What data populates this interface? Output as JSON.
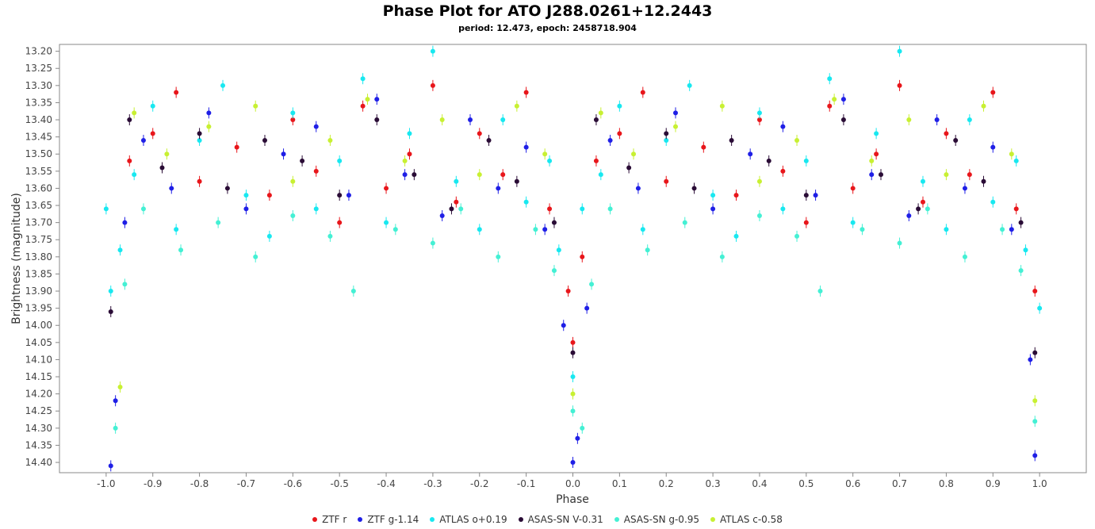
{
  "chart_data": {
    "type": "scatter",
    "title": "Phase Plot for ATO J288.0261+12.2443",
    "subtitle": "period: 12.473, epoch: 2458718.904",
    "xlabel": "Phase",
    "ylabel": "Brightness (magnitude)",
    "xlim": [
      -1.1,
      1.1
    ],
    "ylim": [
      14.43,
      13.18
    ],
    "y_inverted": true,
    "grid": false,
    "legend_position": "bottom",
    "x_ticks": [
      "-1.0",
      "-0.9",
      "-0.8",
      "-0.7",
      "-0.6",
      "-0.5",
      "-0.4",
      "-0.3",
      "-0.2",
      "-0.1",
      "0.0",
      "0.1",
      "0.2",
      "0.3",
      "0.4",
      "0.5",
      "0.6",
      "0.7",
      "0.8",
      "0.9",
      "1.0"
    ],
    "y_ticks": [
      "13.20",
      "13.25",
      "13.30",
      "13.35",
      "13.40",
      "13.45",
      "13.50",
      "13.55",
      "13.60",
      "13.65",
      "13.70",
      "13.75",
      "13.80",
      "13.85",
      "13.90",
      "13.95",
      "14.00",
      "14.05",
      "14.10",
      "14.15",
      "14.20",
      "14.25",
      "14.30",
      "14.35",
      "14.40"
    ],
    "series": [
      {
        "name": "ZTF r",
        "color": "#e8161b",
        "points": [
          [
            -0.95,
            13.52
          ],
          [
            -0.9,
            13.44
          ],
          [
            -0.85,
            13.32
          ],
          [
            -0.8,
            13.58
          ],
          [
            -0.72,
            13.48
          ],
          [
            -0.65,
            13.62
          ],
          [
            -0.6,
            13.4
          ],
          [
            -0.55,
            13.55
          ],
          [
            -0.5,
            13.7
          ],
          [
            -0.45,
            13.36
          ],
          [
            -0.4,
            13.6
          ],
          [
            -0.35,
            13.5
          ],
          [
            -0.3,
            13.3
          ],
          [
            -0.25,
            13.64
          ],
          [
            -0.2,
            13.44
          ],
          [
            -0.15,
            13.56
          ],
          [
            -0.1,
            13.32
          ],
          [
            -0.05,
            13.66
          ],
          [
            -0.01,
            13.9
          ],
          [
            0.0,
            14.05
          ],
          [
            0.02,
            13.8
          ],
          [
            0.05,
            13.52
          ],
          [
            0.1,
            13.44
          ],
          [
            0.15,
            13.32
          ],
          [
            0.2,
            13.58
          ],
          [
            0.28,
            13.48
          ],
          [
            0.35,
            13.62
          ],
          [
            0.4,
            13.4
          ],
          [
            0.45,
            13.55
          ],
          [
            0.5,
            13.7
          ],
          [
            0.55,
            13.36
          ],
          [
            0.6,
            13.6
          ],
          [
            0.65,
            13.5
          ],
          [
            0.7,
            13.3
          ],
          [
            0.75,
            13.64
          ],
          [
            0.8,
            13.44
          ],
          [
            0.85,
            13.56
          ],
          [
            0.9,
            13.32
          ],
          [
            0.95,
            13.66
          ],
          [
            0.99,
            13.9
          ]
        ]
      },
      {
        "name": "ZTF g-1.14",
        "color": "#1f1fe6",
        "points": [
          [
            -0.99,
            14.41
          ],
          [
            -0.98,
            14.22
          ],
          [
            -0.96,
            13.7
          ],
          [
            -0.92,
            13.46
          ],
          [
            -0.86,
            13.6
          ],
          [
            -0.78,
            13.38
          ],
          [
            -0.7,
            13.66
          ],
          [
            -0.62,
            13.5
          ],
          [
            -0.55,
            13.42
          ],
          [
            -0.48,
            13.62
          ],
          [
            -0.42,
            13.34
          ],
          [
            -0.36,
            13.56
          ],
          [
            -0.28,
            13.68
          ],
          [
            -0.22,
            13.4
          ],
          [
            -0.16,
            13.6
          ],
          [
            -0.1,
            13.48
          ],
          [
            -0.06,
            13.72
          ],
          [
            -0.02,
            14.0
          ],
          [
            0.0,
            14.4
          ],
          [
            0.01,
            14.33
          ],
          [
            0.03,
            13.95
          ],
          [
            0.08,
            13.46
          ],
          [
            0.14,
            13.6
          ],
          [
            0.22,
            13.38
          ],
          [
            0.3,
            13.66
          ],
          [
            0.38,
            13.5
          ],
          [
            0.45,
            13.42
          ],
          [
            0.52,
            13.62
          ],
          [
            0.58,
            13.34
          ],
          [
            0.64,
            13.56
          ],
          [
            0.72,
            13.68
          ],
          [
            0.78,
            13.4
          ],
          [
            0.84,
            13.6
          ],
          [
            0.9,
            13.48
          ],
          [
            0.94,
            13.72
          ],
          [
            0.98,
            14.1
          ],
          [
            0.99,
            14.38
          ]
        ]
      },
      {
        "name": "ATLAS o+0.19",
        "color": "#18e8f0",
        "points": [
          [
            -1.0,
            13.66
          ],
          [
            -0.99,
            13.9
          ],
          [
            -0.97,
            13.78
          ],
          [
            -0.94,
            13.56
          ],
          [
            -0.9,
            13.36
          ],
          [
            -0.85,
            13.72
          ],
          [
            -0.8,
            13.46
          ],
          [
            -0.75,
            13.3
          ],
          [
            -0.7,
            13.62
          ],
          [
            -0.65,
            13.74
          ],
          [
            -0.6,
            13.38
          ],
          [
            -0.55,
            13.66
          ],
          [
            -0.5,
            13.52
          ],
          [
            -0.45,
            13.28
          ],
          [
            -0.4,
            13.7
          ],
          [
            -0.35,
            13.44
          ],
          [
            -0.3,
            13.2
          ],
          [
            -0.25,
            13.58
          ],
          [
            -0.2,
            13.72
          ],
          [
            -0.15,
            13.4
          ],
          [
            -0.1,
            13.64
          ],
          [
            -0.05,
            13.52
          ],
          [
            -0.03,
            13.78
          ],
          [
            0.0,
            14.15
          ],
          [
            0.02,
            13.66
          ],
          [
            0.06,
            13.56
          ],
          [
            0.1,
            13.36
          ],
          [
            0.15,
            13.72
          ],
          [
            0.2,
            13.46
          ],
          [
            0.25,
            13.3
          ],
          [
            0.3,
            13.62
          ],
          [
            0.35,
            13.74
          ],
          [
            0.4,
            13.38
          ],
          [
            0.45,
            13.66
          ],
          [
            0.5,
            13.52
          ],
          [
            0.55,
            13.28
          ],
          [
            0.6,
            13.7
          ],
          [
            0.65,
            13.44
          ],
          [
            0.7,
            13.2
          ],
          [
            0.75,
            13.58
          ],
          [
            0.8,
            13.72
          ],
          [
            0.85,
            13.4
          ],
          [
            0.9,
            13.64
          ],
          [
            0.95,
            13.52
          ],
          [
            0.97,
            13.78
          ],
          [
            1.0,
            13.95
          ]
        ]
      },
      {
        "name": "ASAS-SN V-0.31",
        "color": "#2a0c36",
        "points": [
          [
            -0.99,
            13.96
          ],
          [
            -0.95,
            13.4
          ],
          [
            -0.88,
            13.54
          ],
          [
            -0.8,
            13.44
          ],
          [
            -0.74,
            13.6
          ],
          [
            -0.66,
            13.46
          ],
          [
            -0.58,
            13.52
          ],
          [
            -0.5,
            13.62
          ],
          [
            -0.42,
            13.4
          ],
          [
            -0.34,
            13.56
          ],
          [
            -0.26,
            13.66
          ],
          [
            -0.18,
            13.46
          ],
          [
            -0.12,
            13.58
          ],
          [
            -0.04,
            13.7
          ],
          [
            0.0,
            14.08
          ],
          [
            0.05,
            13.4
          ],
          [
            0.12,
            13.54
          ],
          [
            0.2,
            13.44
          ],
          [
            0.26,
            13.6
          ],
          [
            0.34,
            13.46
          ],
          [
            0.42,
            13.52
          ],
          [
            0.5,
            13.62
          ],
          [
            0.58,
            13.4
          ],
          [
            0.66,
            13.56
          ],
          [
            0.74,
            13.66
          ],
          [
            0.82,
            13.46
          ],
          [
            0.88,
            13.58
          ],
          [
            0.96,
            13.7
          ],
          [
            0.99,
            14.08
          ]
        ]
      },
      {
        "name": "ASAS-SN g-0.95",
        "color": "#44f0d4",
        "points": [
          [
            -0.98,
            14.3
          ],
          [
            -0.96,
            13.88
          ],
          [
            -0.92,
            13.66
          ],
          [
            -0.84,
            13.78
          ],
          [
            -0.76,
            13.7
          ],
          [
            -0.68,
            13.8
          ],
          [
            -0.6,
            13.68
          ],
          [
            -0.52,
            13.74
          ],
          [
            -0.47,
            13.9
          ],
          [
            -0.38,
            13.72
          ],
          [
            -0.3,
            13.76
          ],
          [
            -0.24,
            13.66
          ],
          [
            -0.16,
            13.8
          ],
          [
            -0.08,
            13.72
          ],
          [
            -0.04,
            13.84
          ],
          [
            0.0,
            14.25
          ],
          [
            0.02,
            14.3
          ],
          [
            0.04,
            13.88
          ],
          [
            0.08,
            13.66
          ],
          [
            0.16,
            13.78
          ],
          [
            0.24,
            13.7
          ],
          [
            0.32,
            13.8
          ],
          [
            0.4,
            13.68
          ],
          [
            0.48,
            13.74
          ],
          [
            0.53,
            13.9
          ],
          [
            0.62,
            13.72
          ],
          [
            0.7,
            13.76
          ],
          [
            0.76,
            13.66
          ],
          [
            0.84,
            13.8
          ],
          [
            0.92,
            13.72
          ],
          [
            0.96,
            13.84
          ],
          [
            0.99,
            14.28
          ]
        ]
      },
      {
        "name": "ATLAS c-0.58",
        "color": "#c8f032",
        "points": [
          [
            -0.97,
            14.18
          ],
          [
            -0.94,
            13.38
          ],
          [
            -0.87,
            13.5
          ],
          [
            -0.78,
            13.42
          ],
          [
            -0.68,
            13.36
          ],
          [
            -0.6,
            13.58
          ],
          [
            -0.52,
            13.46
          ],
          [
            -0.44,
            13.34
          ],
          [
            -0.36,
            13.52
          ],
          [
            -0.28,
            13.4
          ],
          [
            -0.2,
            13.56
          ],
          [
            -0.12,
            13.36
          ],
          [
            -0.06,
            13.5
          ],
          [
            0.0,
            14.2
          ],
          [
            0.06,
            13.38
          ],
          [
            0.13,
            13.5
          ],
          [
            0.22,
            13.42
          ],
          [
            0.32,
            13.36
          ],
          [
            0.4,
            13.58
          ],
          [
            0.48,
            13.46
          ],
          [
            0.56,
            13.34
          ],
          [
            0.64,
            13.52
          ],
          [
            0.72,
            13.4
          ],
          [
            0.8,
            13.56
          ],
          [
            0.88,
            13.36
          ],
          [
            0.94,
            13.5
          ],
          [
            0.99,
            14.22
          ]
        ]
      }
    ]
  }
}
